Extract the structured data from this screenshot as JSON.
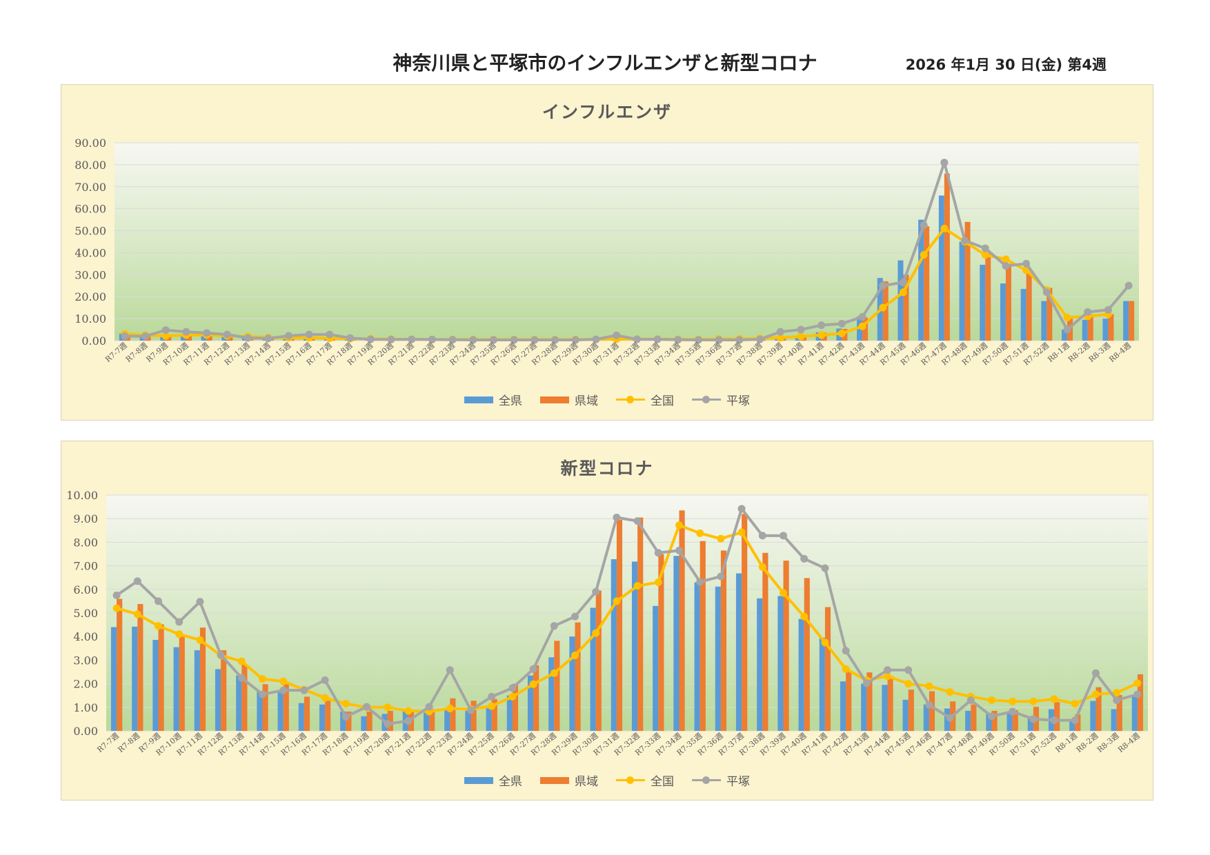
{
  "header": {
    "title": "神奈川県と平塚市のインフルエンザと新型コロナ",
    "date": "2026 年1月 30 日(金) 第4週"
  },
  "colors": {
    "zenken": "#5b9bd5",
    "kenjo": "#ed7d31",
    "zenkoku": "#ffc000",
    "hiratsuka": "#a5a5a5"
  },
  "chart_data": [
    {
      "type": "bar",
      "title": "インフルエンザ",
      "ylim": [
        0,
        90
      ],
      "yticks": [
        "0.00",
        "10.00",
        "20.00",
        "30.00",
        "40.00",
        "50.00",
        "60.00",
        "70.00",
        "80.00",
        "90.00"
      ],
      "grid": true,
      "legend_position": "bottom",
      "categories": [
        "R7-7週",
        "R7-8週",
        "R7-9週",
        "R7-10週",
        "R7-11週",
        "R7-12週",
        "R7-13週",
        "R7-14週",
        "R7-15週",
        "R7-16週",
        "R7-17週",
        "R7-18週",
        "R7-19週",
        "R7-20週",
        "R7-21週",
        "R7-22週",
        "R7-23週",
        "R7-24週",
        "R7-25週",
        "R7-26週",
        "R7-27週",
        "R7-28週",
        "R7-29週",
        "R7-30週",
        "R7-31週",
        "R7-32週",
        "R7-33週",
        "R7-34週",
        "R7-35週",
        "R7-36週",
        "R7-37週",
        "R7-38週",
        "R7-39週",
        "R7-40週",
        "R7-41週",
        "R7-42週",
        "R7-43週",
        "R7-44週",
        "R7-45週",
        "R7-46週",
        "R7-47週",
        "R7-48週",
        "R7-49週",
        "R7-50週",
        "R7-51週",
        "R7-52週",
        "R8-1週",
        "R8-2週",
        "R8-3週",
        "R8-4週"
      ],
      "series": [
        {
          "name": "全県",
          "kind": "bar",
          "values": [
            3.2,
            2.6,
            2.2,
            2.8,
            2.9,
            2.3,
            1.9,
            1.5,
            1.3,
            1.2,
            1.1,
            1.0,
            0.8,
            0.7,
            0.6,
            0.5,
            0.5,
            0.4,
            0.4,
            0.4,
            0.4,
            0.4,
            0.5,
            0.5,
            0.6,
            0.7,
            0.7,
            0.6,
            0.6,
            0.7,
            0.8,
            1.0,
            1.5,
            2.1,
            3.8,
            5.5,
            11.0,
            28.5,
            36.5,
            55.0,
            66.0,
            45.0,
            34.5,
            26.0,
            23.5,
            18.0,
            5.0,
            9.5,
            10.0,
            18.0
          ]
        },
        {
          "name": "県域",
          "kind": "bar",
          "values": [
            3.0,
            2.5,
            2.3,
            2.6,
            2.8,
            2.2,
            1.8,
            1.4,
            1.2,
            1.1,
            1.0,
            0.9,
            0.8,
            0.7,
            0.6,
            0.5,
            0.5,
            0.4,
            0.4,
            0.4,
            0.4,
            0.4,
            0.5,
            0.5,
            0.6,
            0.7,
            0.7,
            0.6,
            0.6,
            0.7,
            0.8,
            1.0,
            1.4,
            2.0,
            3.6,
            5.3,
            10.5,
            27.0,
            30.0,
            52.0,
            76.0,
            54.0,
            40.0,
            35.0,
            31.0,
            24.0,
            10.0,
            12.0,
            12.0,
            18.0
          ]
        },
        {
          "name": "全国",
          "kind": "line",
          "values": [
            3.0,
            2.5,
            2.1,
            2.5,
            2.6,
            2.2,
            1.9,
            1.4,
            1.3,
            1.3,
            1.1,
            0.9,
            0.8,
            0.7,
            0.6,
            0.5,
            0.5,
            0.5,
            0.5,
            0.5,
            0.5,
            0.5,
            0.5,
            0.6,
            0.7,
            0.7,
            0.7,
            0.6,
            0.6,
            0.7,
            0.8,
            1.0,
            1.3,
            1.9,
            2.5,
            3.3,
            6.5,
            15.0,
            22.0,
            39.0,
            51.0,
            45.0,
            39.0,
            37.0,
            32.0,
            23.0,
            10.5,
            11.0,
            12.0,
            null
          ]
        },
        {
          "name": "平塚",
          "kind": "line",
          "values": [
            2.0,
            2.0,
            4.8,
            4.0,
            3.5,
            2.8,
            1.2,
            1.0,
            2.2,
            2.8,
            2.8,
            1.2,
            0.6,
            0.5,
            0.6,
            0.5,
            0.4,
            0.3,
            0.3,
            0.3,
            0.3,
            0.3,
            0.3,
            0.6,
            2.4,
            0.6,
            0.6,
            0.4,
            0.3,
            0.3,
            0.3,
            0.6,
            4.0,
            5.0,
            7.0,
            7.7,
            10.8,
            25.0,
            26.5,
            52.5,
            81.0,
            45.5,
            42.0,
            34.0,
            35.0,
            22.0,
            5.0,
            13.0,
            14.0,
            25.0
          ]
        }
      ]
    },
    {
      "type": "bar",
      "title": "新型コロナ",
      "ylim": [
        0,
        10
      ],
      "yticks": [
        "0.00",
        "1.00",
        "2.00",
        "3.00",
        "4.00",
        "5.00",
        "6.00",
        "7.00",
        "8.00",
        "9.00",
        "10.00"
      ],
      "grid": true,
      "legend_position": "bottom",
      "categories": [
        "R7-7週",
        "R7-8週",
        "R7-9週",
        "R7-10週",
        "R7-11週",
        "R7-12週",
        "R7-13週",
        "R7-14週",
        "R7-15週",
        "R7-16週",
        "R7-17週",
        "R7-18週",
        "R7-19週",
        "R7-20週",
        "R7-21週",
        "R7-22週",
        "R7-23週",
        "R7-24週",
        "R7-25週",
        "R7-26週",
        "R7-27週",
        "R7-28週",
        "R7-29週",
        "R7-30週",
        "R7-31週",
        "R7-32週",
        "R7-33週",
        "R7-34週",
        "R7-35週",
        "R7-36週",
        "R7-37週",
        "R7-38週",
        "R7-39週",
        "R7-40週",
        "R7-41週",
        "R7-42週",
        "R7-43週",
        "R7-44週",
        "R7-45週",
        "R7-46週",
        "R7-47週",
        "R7-48週",
        "R7-49週",
        "R7-50週",
        "R7-51週",
        "R7-52週",
        "R8-1週",
        "R8-2週",
        "R8-3週",
        "R8-4週"
      ],
      "series": [
        {
          "name": "全県",
          "kind": "bar",
          "values": [
            4.4,
            4.42,
            3.86,
            3.55,
            3.42,
            2.62,
            2.35,
            1.68,
            1.65,
            1.18,
            1.12,
            0.82,
            0.62,
            0.72,
            0.82,
            0.88,
            0.95,
            0.85,
            0.98,
            1.5,
            2.35,
            3.12,
            4.0,
            5.22,
            7.28,
            7.18,
            5.3,
            7.42,
            6.3,
            6.12,
            6.68,
            5.62,
            5.72,
            4.75,
            3.95,
            2.1,
            2.0,
            1.95,
            1.32,
            1.12,
            0.95,
            0.85,
            0.72,
            0.75,
            0.62,
            0.92,
            0.5,
            1.27,
            0.92,
            1.5
          ]
        },
        {
          "name": "県域",
          "kind": "bar",
          "values": [
            5.6,
            5.38,
            4.52,
            4.02,
            4.38,
            3.42,
            2.82,
            1.98,
            1.98,
            1.45,
            1.28,
            0.82,
            0.82,
            0.85,
            0.85,
            0.92,
            1.38,
            1.28,
            1.35,
            2.0,
            2.78,
            3.82,
            4.6,
            5.95,
            8.95,
            9.05,
            7.5,
            9.35,
            8.05,
            7.65,
            9.2,
            7.55,
            7.22,
            6.48,
            5.25,
            2.5,
            2.48,
            2.32,
            1.75,
            1.68,
            1.25,
            1.12,
            0.85,
            0.88,
            1.02,
            1.22,
            0.7,
            1.85,
            1.52,
            2.4
          ]
        },
        {
          "name": "全国",
          "kind": "line",
          "values": [
            5.2,
            4.95,
            4.45,
            4.1,
            3.85,
            3.2,
            2.95,
            2.2,
            2.1,
            1.75,
            1.4,
            1.15,
            1.0,
            1.0,
            0.85,
            0.82,
            0.95,
            0.92,
            1.05,
            1.45,
            1.98,
            2.45,
            3.2,
            4.15,
            5.5,
            6.15,
            6.3,
            8.72,
            8.38,
            8.15,
            8.42,
            6.95,
            5.85,
            4.85,
            3.75,
            2.62,
            2.15,
            2.32,
            2.0,
            1.9,
            1.65,
            1.45,
            1.3,
            1.25,
            1.25,
            1.35,
            1.15,
            1.55,
            1.62,
            2.02
          ]
        },
        {
          "name": "平塚",
          "kind": "line",
          "values": [
            5.75,
            6.35,
            5.5,
            4.62,
            5.48,
            3.22,
            2.25,
            1.55,
            1.72,
            1.72,
            2.15,
            0.6,
            1.02,
            0.3,
            0.42,
            1.02,
            2.58,
            0.88,
            1.45,
            1.82,
            2.62,
            4.45,
            4.85,
            5.9,
            9.05,
            8.9,
            7.55,
            7.65,
            6.32,
            6.55,
            9.42,
            8.28,
            8.28,
            7.3,
            6.9,
            3.4,
            2.02,
            2.58,
            2.58,
            1.1,
            0.55,
            1.3,
            0.62,
            0.82,
            0.5,
            0.45,
            0.45,
            2.45,
            1.3,
            1.55
          ]
        }
      ]
    }
  ]
}
